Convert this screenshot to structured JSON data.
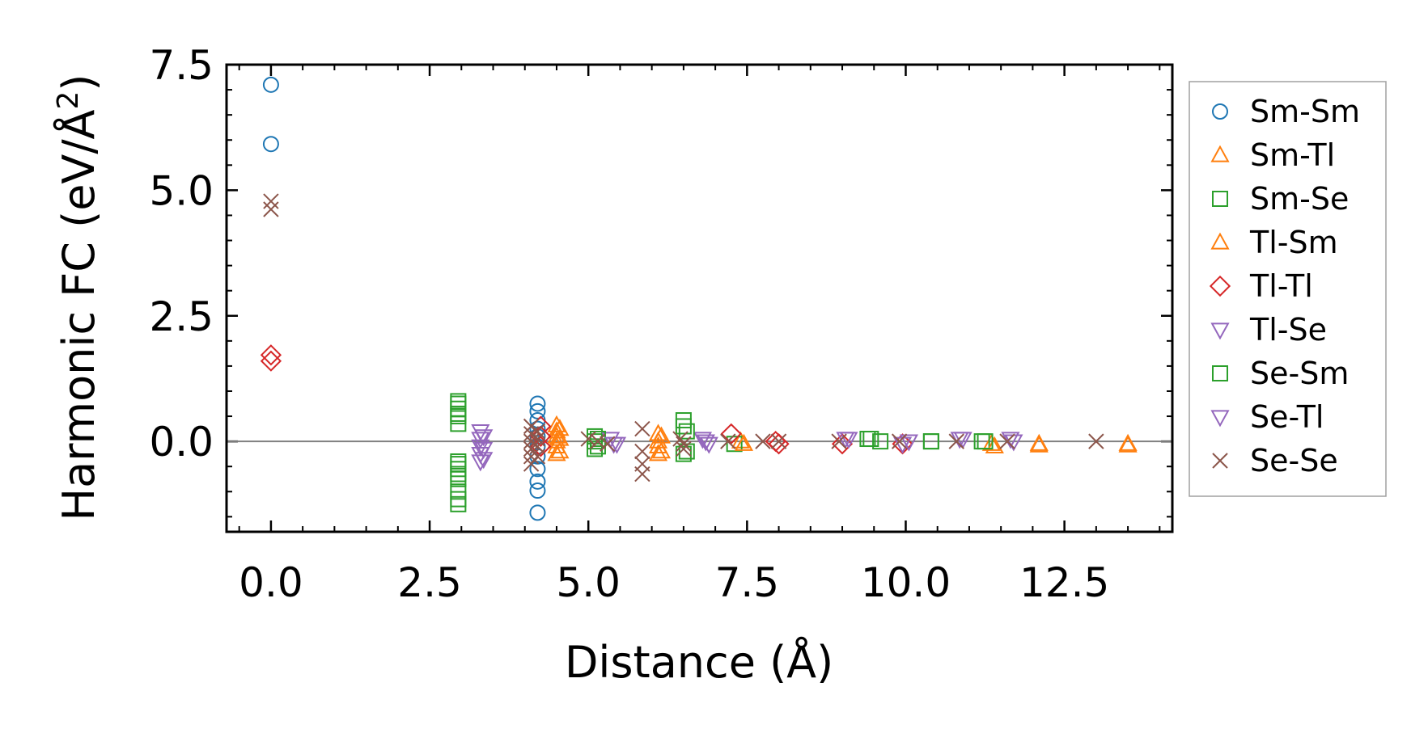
{
  "chart_data": {
    "type": "scatter",
    "title": "",
    "xlabel": "Distance (Å)",
    "ylabel": "Harmonic FC (eV/Å",
    "ylabel_sup": "2",
    "ylabel_close": ")",
    "xlim": [
      -0.7,
      14.2
    ],
    "ylim": [
      -1.8,
      7.5
    ],
    "xticks": [
      0.0,
      2.5,
      5.0,
      7.5,
      10.0,
      12.5
    ],
    "yticks": [
      0.0,
      2.5,
      5.0,
      7.5
    ],
    "xtick_labels": [
      "0.0",
      "2.5",
      "5.0",
      "7.5",
      "10.0",
      "12.5"
    ],
    "ytick_labels": [
      "0.0",
      "2.5",
      "5.0",
      "7.5"
    ],
    "zero_line": true,
    "legend_position": "outside-right",
    "series": [
      {
        "name": "Sm-Sm",
        "marker": "circle",
        "color": "#1f77b4",
        "x": [
          0,
          0,
          4.2,
          4.2,
          4.2,
          4.2,
          4.2,
          4.2,
          4.2,
          4.2,
          4.2,
          4.2,
          4.2
        ],
        "y": [
          7.1,
          5.92,
          0.75,
          0.6,
          0.42,
          0.25,
          0.1,
          -0.1,
          -0.3,
          -0.55,
          -0.8,
          -0.98,
          -1.42
        ]
      },
      {
        "name": "Sm-Tl",
        "marker": "triangle-up",
        "color": "#ff7f0e",
        "x": [
          4.5,
          4.5,
          4.5,
          4.5,
          4.5,
          4.5,
          6.1,
          6.1,
          6.1,
          6.1,
          7.4,
          11.35,
          12.1,
          13.5
        ],
        "y": [
          0.32,
          0.2,
          0.1,
          0.0,
          -0.1,
          -0.25,
          0.15,
          0.0,
          -0.1,
          -0.25,
          0.0,
          -0.05,
          -0.05,
          -0.05
        ]
      },
      {
        "name": "Sm-Se",
        "marker": "square",
        "color": "#2ca02c",
        "x": [
          2.95,
          2.95,
          2.95,
          2.95,
          2.95,
          2.95,
          2.95,
          2.95,
          2.95,
          5.1,
          5.1,
          5.1,
          6.5,
          6.5,
          6.5,
          7.3,
          9.45,
          9.6,
          10.4,
          11.2
        ],
        "y": [
          0.8,
          0.65,
          0.5,
          0.35,
          -0.4,
          -0.55,
          -0.75,
          -1.0,
          -1.25,
          0.1,
          0.0,
          -0.15,
          0.42,
          0.3,
          -0.25,
          -0.05,
          0.05,
          0.0,
          0.0,
          0.0
        ]
      },
      {
        "name": "Tl-Sm",
        "marker": "triangle-up",
        "color": "#ff7f0e",
        "x": [
          4.55,
          4.55,
          4.55,
          6.15,
          6.15,
          7.45,
          11.4,
          12.1,
          13.5
        ],
        "y": [
          0.25,
          0.05,
          -0.2,
          0.1,
          -0.2,
          -0.05,
          -0.1,
          -0.08,
          -0.08
        ]
      },
      {
        "name": "Tl-Tl",
        "marker": "diamond",
        "color": "#d62728",
        "x": [
          0,
          0,
          4.25,
          4.25,
          4.25,
          7.25,
          7.95,
          8.0,
          9.0,
          9.95
        ],
        "y": [
          1.72,
          1.6,
          0.3,
          0.1,
          -0.1,
          0.15,
          0.0,
          -0.05,
          -0.05,
          -0.05
        ]
      },
      {
        "name": "Tl-Se",
        "marker": "triangle-down",
        "color": "#9467bd",
        "x": [
          3.3,
          3.3,
          3.3,
          3.3,
          3.3,
          5.35,
          5.45,
          6.8,
          6.9,
          9.05,
          10.05,
          10.85,
          11.65
        ],
        "y": [
          0.2,
          0.05,
          -0.1,
          -0.25,
          -0.4,
          0.05,
          -0.05,
          0.05,
          -0.05,
          0.05,
          0.0,
          0.05,
          0.05
        ]
      },
      {
        "name": "Se-Sm",
        "marker": "square",
        "color": "#2ca02c",
        "x": [
          2.95,
          2.95,
          2.95,
          2.95,
          2.95,
          5.15,
          5.15,
          6.55,
          6.55,
          9.4,
          10.4,
          11.25
        ],
        "y": [
          0.75,
          0.55,
          -0.45,
          -0.65,
          -1.15,
          0.05,
          -0.1,
          0.2,
          -0.2,
          0.05,
          0.0,
          0.0
        ]
      },
      {
        "name": "Se-Tl",
        "marker": "triangle-down",
        "color": "#9467bd",
        "x": [
          3.35,
          3.35,
          3.35,
          5.4,
          6.85,
          9.1,
          9.95,
          10.9,
          11.7
        ],
        "y": [
          0.1,
          -0.15,
          -0.35,
          -0.05,
          0.0,
          0.05,
          -0.05,
          0.05,
          0.0
        ]
      },
      {
        "name": "Se-Se",
        "marker": "x",
        "color": "#8c564b",
        "x": [
          0,
          0,
          4.1,
          4.1,
          4.1,
          4.1,
          4.1,
          4.1,
          4.2,
          4.2,
          4.2,
          4.2,
          5.0,
          5.15,
          5.3,
          5.85,
          5.85,
          5.85,
          5.85,
          6.45,
          6.5,
          6.5,
          7.2,
          7.75,
          8.0,
          8.95,
          9.9,
          10.8,
          11.6,
          13.0
        ],
        "y": [
          4.78,
          4.62,
          0.3,
          0.15,
          0.0,
          -0.15,
          -0.3,
          -0.45,
          0.2,
          0.05,
          -0.1,
          -0.3,
          0.05,
          0.0,
          -0.05,
          0.25,
          -0.2,
          -0.45,
          -0.65,
          0.05,
          -0.05,
          -0.15,
          0.0,
          0.0,
          0.0,
          0.0,
          0.0,
          0.0,
          0.0,
          0.0
        ]
      }
    ]
  }
}
